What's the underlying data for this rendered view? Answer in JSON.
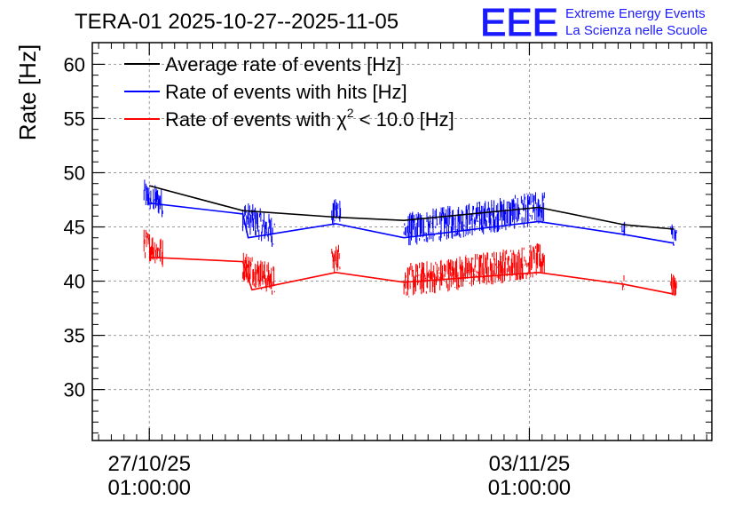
{
  "chart_data": {
    "type": "line",
    "title": "TERA-01 2025-10-27--2025-11-05",
    "ylabel": "Rate [Hz]",
    "xlabel": "",
    "ylim": [
      25.3,
      62
    ],
    "xlim": [
      -0.75,
      7.4
    ],
    "grid": true,
    "yticks": [
      30,
      35,
      40,
      45,
      50,
      55,
      60
    ],
    "ytick_labels": [
      "30",
      "35",
      "40",
      "45",
      "50",
      "55",
      "60"
    ],
    "xticks": [
      {
        "value": 0,
        "date": "27/10/25",
        "time": "01:00:00"
      },
      {
        "value": 5,
        "date": "03/11/25",
        "time": "01:00:00"
      }
    ],
    "logo": {
      "mark": "EEE",
      "line1": "Extreme Energy Events",
      "line2": "La Scienza nelle Scuole",
      "color": "#1a1aff"
    },
    "legend": {
      "position": "top-left",
      "entries": [
        {
          "label": "Average rate of events [Hz]",
          "color": "#000000"
        },
        {
          "label": "Rate of events with hits [Hz]",
          "color": "#0000ff"
        },
        {
          "label_prefix": "Rate of events with ",
          "label_symbol": "χ",
          "label_sup": "2",
          "label_suffix": " < 10.0 [Hz]",
          "color": "#ff0000"
        }
      ]
    },
    "series": [
      {
        "name": "Average rate of events [Hz]",
        "color": "#000000",
        "x": [
          0.0,
          1.23,
          2.45,
          3.35,
          5.12,
          6.25,
          6.9
        ],
        "values": [
          48.8,
          46.5,
          45.9,
          45.6,
          46.8,
          45.2,
          44.8
        ]
      },
      {
        "name": "Rate of events with hits [Hz]",
        "color": "#0000ff",
        "x": [
          0.0,
          1.23,
          1.3,
          2.45,
          3.35,
          5.12,
          6.25,
          6.9
        ],
        "values": [
          47.2,
          46.2,
          44.0,
          45.3,
          44.0,
          45.5,
          44.3,
          43.5
        ]
      },
      {
        "name": "Rate of events with χ2 < 10.0 [Hz]",
        "color": "#ff0000",
        "x": [
          0.0,
          1.23,
          1.35,
          2.45,
          3.35,
          5.12,
          6.25,
          6.9
        ],
        "values": [
          42.2,
          41.8,
          39.2,
          40.8,
          39.9,
          40.8,
          39.7,
          38.8
        ]
      }
    ],
    "bands": [
      {
        "series": 1,
        "segments": [
          {
            "x0": -0.07,
            "x1": 0.18,
            "center": [
              48.0,
              47.2
            ],
            "spread": 1.4
          },
          {
            "x0": 1.23,
            "x1": 1.65,
            "center": [
              46.1,
              44.5
            ],
            "spread": 1.5
          },
          {
            "x0": 2.4,
            "x1": 2.52,
            "center": [
              46.0,
              46.8
            ],
            "spread": 1.3
          },
          {
            "x0": 3.35,
            "x1": 5.2,
            "center": [
              44.7,
              46.8
            ],
            "spread": 1.6
          },
          {
            "x0": 6.22,
            "x1": 6.26,
            "center": [
              44.8,
              44.8
            ],
            "spread": 0.8
          },
          {
            "x0": 6.86,
            "x1": 6.94,
            "center": [
              44.2,
              44.2
            ],
            "spread": 1.1
          }
        ]
      },
      {
        "series": 2,
        "segments": [
          {
            "x0": -0.07,
            "x1": 0.18,
            "center": [
              43.5,
              42.6
            ],
            "spread": 1.4
          },
          {
            "x0": 1.23,
            "x1": 1.65,
            "center": [
              41.5,
              40.0
            ],
            "spread": 1.5
          },
          {
            "x0": 2.4,
            "x1": 2.52,
            "center": [
              41.8,
              42.4
            ],
            "spread": 1.3
          },
          {
            "x0": 3.35,
            "x1": 5.2,
            "center": [
              40.0,
              42.0
            ],
            "spread": 1.6
          },
          {
            "x0": 6.22,
            "x1": 6.26,
            "center": [
              39.8,
              39.8
            ],
            "spread": 0.8
          },
          {
            "x0": 6.86,
            "x1": 6.94,
            "center": [
              39.6,
              39.6
            ],
            "spread": 1.1
          }
        ]
      }
    ]
  }
}
